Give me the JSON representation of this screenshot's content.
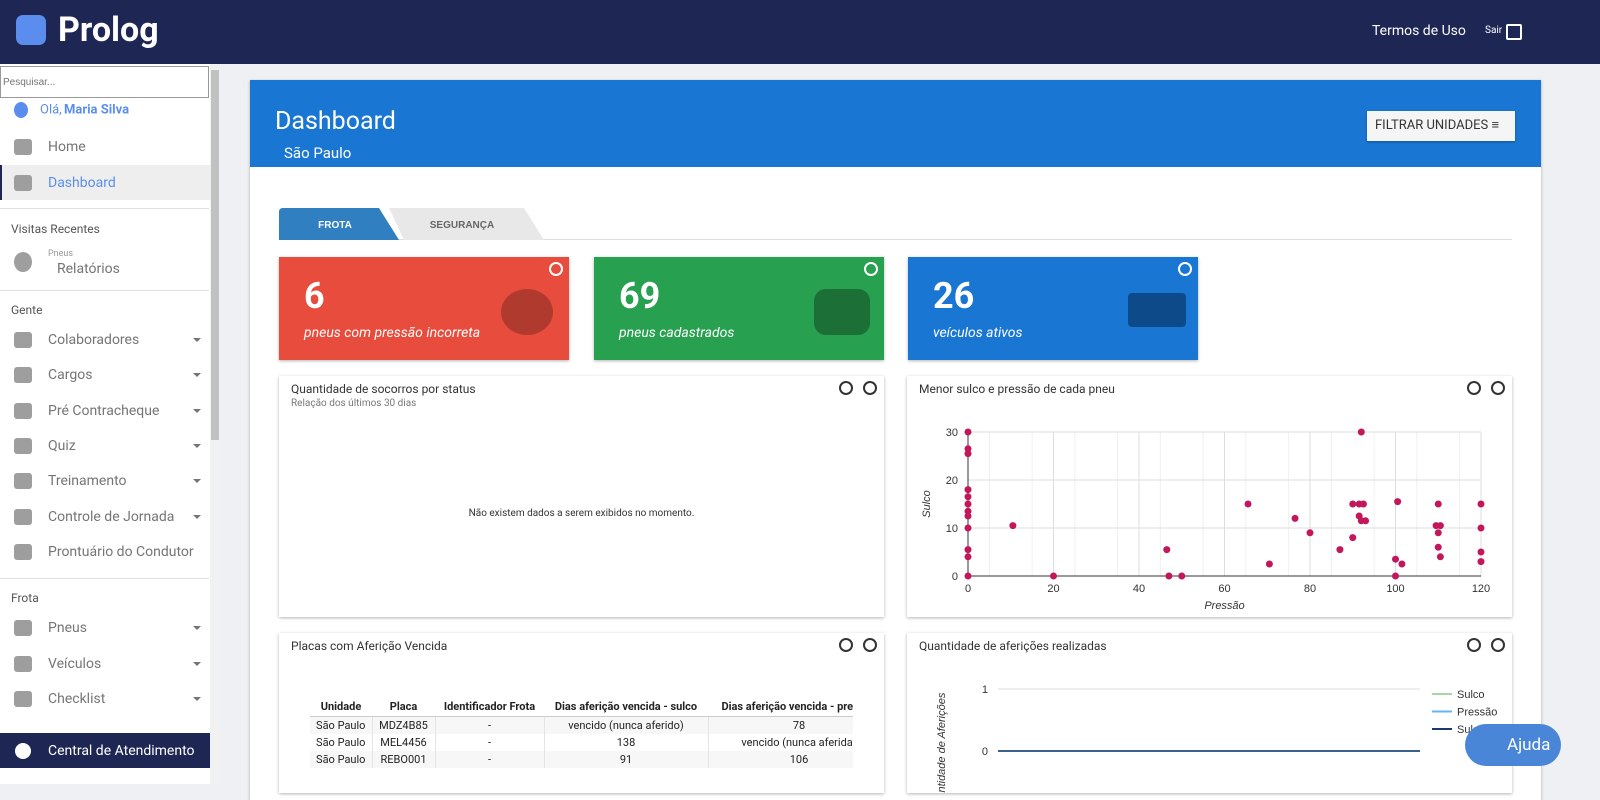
{
  "header": {
    "brand": "Prolog",
    "terms": "Termos de Uso",
    "logout": "Sair"
  },
  "sidebar": {
    "search_placeholder": "Pesquisar...",
    "greeting": "Olá,",
    "user": "Maria Silva",
    "main": [
      "Home",
      "Dashboard"
    ],
    "recent": {
      "heading": "Visitas Recentes",
      "category": "Pneus",
      "label": "Relatórios"
    },
    "gente": {
      "heading": "Gente",
      "items": [
        "Colaboradores",
        "Cargos",
        "Pré Contracheque",
        "Quiz",
        "Treinamento",
        "Controle de Jornada",
        "Prontuário do Condutor"
      ]
    },
    "frota": {
      "heading": "Frota",
      "items": [
        "Pneus",
        "Veículos",
        "Checklist"
      ]
    },
    "support": "Central de Atendimento"
  },
  "dashboard": {
    "title": "Dashboard",
    "unit": "São Paulo",
    "filter": "FILTRAR UNIDADES"
  },
  "tabs": [
    "FROTA",
    "SEGURANÇA"
  ],
  "kpis": [
    {
      "value": 6,
      "label": "pneus com pressão incorreta"
    },
    {
      "value": 69,
      "label": "pneus cadastrados"
    },
    {
      "value": 26,
      "label": "veículos ativos"
    }
  ],
  "socorros": {
    "title": "Quantidade de socorros por status",
    "subtitle": "Relação dos últimos 30 dias",
    "empty": "Não existem dados a serem exibidos no momento."
  },
  "scatter": {
    "title": "Menor sulco e pressão de cada pneu",
    "type": "scatter",
    "x_label": "Pressão",
    "y_label": "Sulco",
    "color": "#c2185b",
    "grid": true,
    "x": [
      0,
      0,
      0,
      0,
      0,
      0,
      0,
      0,
      0,
      0,
      0,
      0,
      10.5,
      20,
      46.5,
      47,
      50,
      65.5,
      70.5,
      76.5,
      80,
      87,
      90,
      90,
      92,
      91.5,
      92.5,
      91.5,
      92,
      93,
      100,
      100.5,
      100,
      101.5,
      110,
      109.5,
      110.5,
      110,
      110,
      110.5,
      120,
      120,
      120,
      120
    ],
    "values": [
      30,
      26.5,
      25.5,
      18,
      16.5,
      15,
      13.5,
      12.5,
      10,
      5.5,
      4,
      0,
      10.5,
      0,
      5.5,
      0,
      0,
      15,
      2.5,
      12,
      9,
      5.5,
      8,
      15,
      30,
      15,
      15,
      12.5,
      11.5,
      11.5,
      3.5,
      15.5,
      0,
      2.5,
      15,
      10.5,
      10.5,
      9,
      6,
      4,
      15,
      10,
      5,
      3
    ],
    "xlim": [
      0,
      120
    ],
    "ylim": [
      0,
      30
    ],
    "xticks": [
      0,
      20,
      40,
      60,
      80,
      100,
      120
    ],
    "yticks": [
      0,
      10,
      20,
      30
    ]
  },
  "placas": {
    "title": "Placas com Aferição Vencida",
    "columns": [
      "Unidade",
      "Placa",
      "Identificador Frota",
      "Dias aferição vencida - sulco",
      "Dias aferição vencida - pressão"
    ],
    "rows": [
      [
        "São Paulo",
        "MDZ4B85",
        "-",
        "vencido (nunca aferido)",
        78
      ],
      [
        "São Paulo",
        "MEL4456",
        "-",
        138,
        "vencido (nunca aferida)"
      ],
      [
        "São Paulo",
        "REBO001",
        "-",
        91,
        106
      ]
    ]
  },
  "afericoes": {
    "title": "Quantidade de aferições realizadas",
    "type": "line",
    "y_label": "Quantidade de Aferições",
    "categories": [
      null,
      null
    ],
    "series": [
      {
        "name": "Sulco",
        "color": "#a5d6a7",
        "values": [
          0,
          0
        ]
      },
      {
        "name": "Pressão",
        "color": "#64b5f6",
        "values": [
          0,
          0
        ]
      },
      {
        "name": "Sulco e Pressão",
        "color": "#1a3a6e",
        "values": [
          0,
          0
        ]
      }
    ],
    "ylim": [
      0,
      1
    ],
    "yticks": [
      0,
      1
    ]
  },
  "help": "Ajuda"
}
